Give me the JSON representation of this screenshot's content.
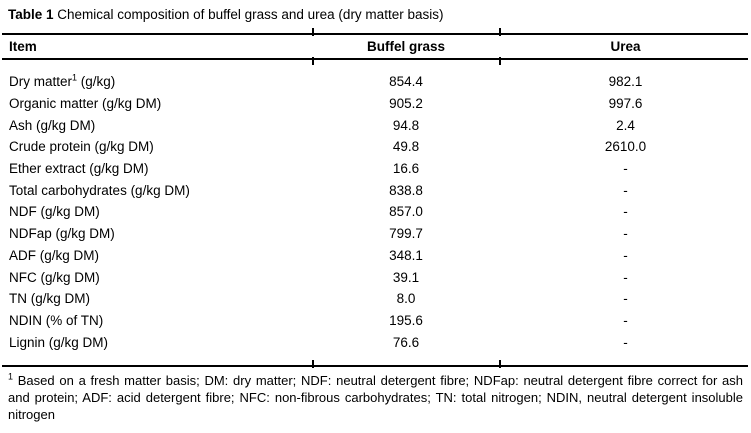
{
  "page": {
    "background": "#ffffff",
    "text_color": "#000000",
    "rule_color": "#000000"
  },
  "title": {
    "label": "Table 1",
    "text": " Chemical composition of buffel grass and urea (dry matter basis)"
  },
  "table": {
    "columns": [
      {
        "key": "item",
        "label": "Item",
        "align": "left"
      },
      {
        "key": "buffel",
        "label": "Buffel grass",
        "align": "center"
      },
      {
        "key": "urea",
        "label": "Urea",
        "align": "center"
      }
    ],
    "rows": [
      {
        "item": "Dry matter",
        "item_sup": "1",
        "item_rest": " (g/kg)",
        "buffel": "854.4",
        "urea": "982.1"
      },
      {
        "item": "Organic matter (g/kg DM)",
        "item_sup": "",
        "item_rest": "",
        "buffel": "905.2",
        "urea": "997.6"
      },
      {
        "item": "Ash (g/kg DM)",
        "item_sup": "",
        "item_rest": "",
        "buffel": "94.8",
        "urea": "2.4"
      },
      {
        "item": "Crude protein (g/kg DM)",
        "item_sup": "",
        "item_rest": "",
        "buffel": "49.8",
        "urea": "2610.0"
      },
      {
        "item": "Ether extract (g/kg DM)",
        "item_sup": "",
        "item_rest": "",
        "buffel": "16.6",
        "urea": "-"
      },
      {
        "item": "Total carbohydrates (g/kg DM)",
        "item_sup": "",
        "item_rest": "",
        "buffel": "838.8",
        "urea": "-"
      },
      {
        "item": "NDF (g/kg DM)",
        "item_sup": "",
        "item_rest": "",
        "buffel": "857.0",
        "urea": "-"
      },
      {
        "item": "NDFap (g/kg DM)",
        "item_sup": "",
        "item_rest": "",
        "buffel": "799.7",
        "urea": "-"
      },
      {
        "item": "ADF (g/kg DM)",
        "item_sup": "",
        "item_rest": "",
        "buffel": "348.1",
        "urea": "-"
      },
      {
        "item": "NFC (g/kg DM)",
        "item_sup": "",
        "item_rest": "",
        "buffel": "39.1",
        "urea": "-"
      },
      {
        "item": "TN (g/kg DM)",
        "item_sup": "",
        "item_rest": "",
        "buffel": "8.0",
        "urea": "-"
      },
      {
        "item": "NDIN (% of TN)",
        "item_sup": "",
        "item_rest": "",
        "buffel": "195.6",
        "urea": "-"
      },
      {
        "item": "Lignin (g/kg DM)",
        "item_sup": "",
        "item_rest": "",
        "buffel": "76.6",
        "urea": "-"
      }
    ]
  },
  "footnote": {
    "sup": "1",
    "text": " Based on a fresh matter basis; DM: dry matter; NDF: neutral detergent fibre; NDFap: neutral detergent fibre correct for ash and protein; ADF: acid detergent fibre; NFC: non-fibrous carbohydrates; TN: total nitrogen; NDIN, neutral detergent insoluble nitrogen"
  }
}
